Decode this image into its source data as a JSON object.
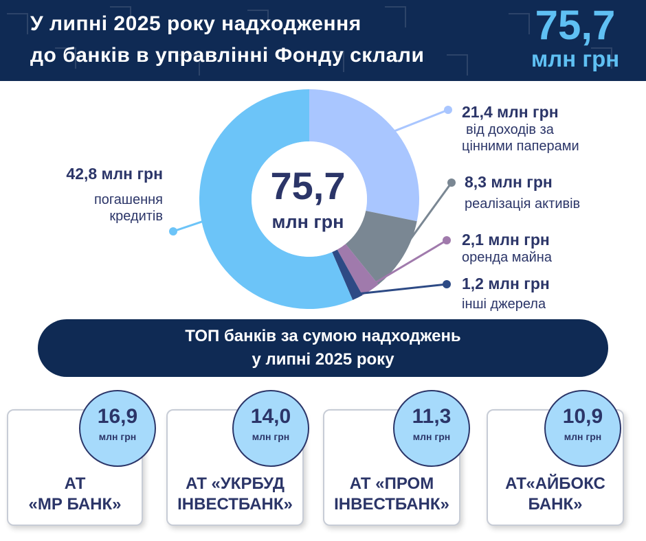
{
  "header": {
    "title_line1": "У липні 2025 року надходження",
    "title_line2": "до банків в управлінні Фонду склали",
    "total_value": "75,7",
    "total_unit": "млн грн"
  },
  "center": {
    "value": "75,7",
    "unit": "млн грн"
  },
  "chart_data": {
    "type": "pie",
    "labels": [
      "погашення кредитів",
      "від доходів за цінними паперами",
      "реалізація активів",
      "оренда майна",
      "інші джерела"
    ],
    "values": [
      42.8,
      21.4,
      8.3,
      2.1,
      1.2
    ],
    "value_labels": [
      "42,8 млн грн",
      "21,4 млн грн",
      "8,3 млн грн",
      "2,1 млн грн",
      "1,2 млн грн"
    ],
    "colors": [
      "#6cc4f8",
      "#a9c6ff",
      "#7a8793",
      "#a07aac",
      "#2d4a85"
    ],
    "total": 75.7
  },
  "legend": {
    "credits": {
      "amount": "42,8 млн грн",
      "desc1": "погашення",
      "desc2": "кредитів"
    },
    "securities": {
      "amount": "21,4 млн грн",
      "desc1": "від доходів за",
      "desc2": "цінними паперами"
    },
    "assets": {
      "amount": "8,3 млн грн",
      "desc": "реалізація активів"
    },
    "rent": {
      "amount": "2,1 млн грн",
      "desc": "оренда майна"
    },
    "other": {
      "amount": "1,2 млн грн",
      "desc": "інші джерела"
    }
  },
  "top": {
    "line1": "ТОП банків за сумою надходжень",
    "line2": "у липні 2025 року"
  },
  "banks": [
    {
      "value": "16,9",
      "unit": "млн грн",
      "name1": "АТ",
      "name2": "«МР БАНК»"
    },
    {
      "value": "14,0",
      "unit": "млн грн",
      "name1": "АТ «УКРБУД",
      "name2": "ІНВЕСТБАНК»"
    },
    {
      "value": "11,3",
      "unit": "млн грн",
      "name1": "АТ «ПРОМ",
      "name2": "ІНВЕСТБАНК»"
    },
    {
      "value": "10,9",
      "unit": "млн грн",
      "name1": "АТ«АЙБОКС",
      "name2": "БАНК»"
    }
  ]
}
